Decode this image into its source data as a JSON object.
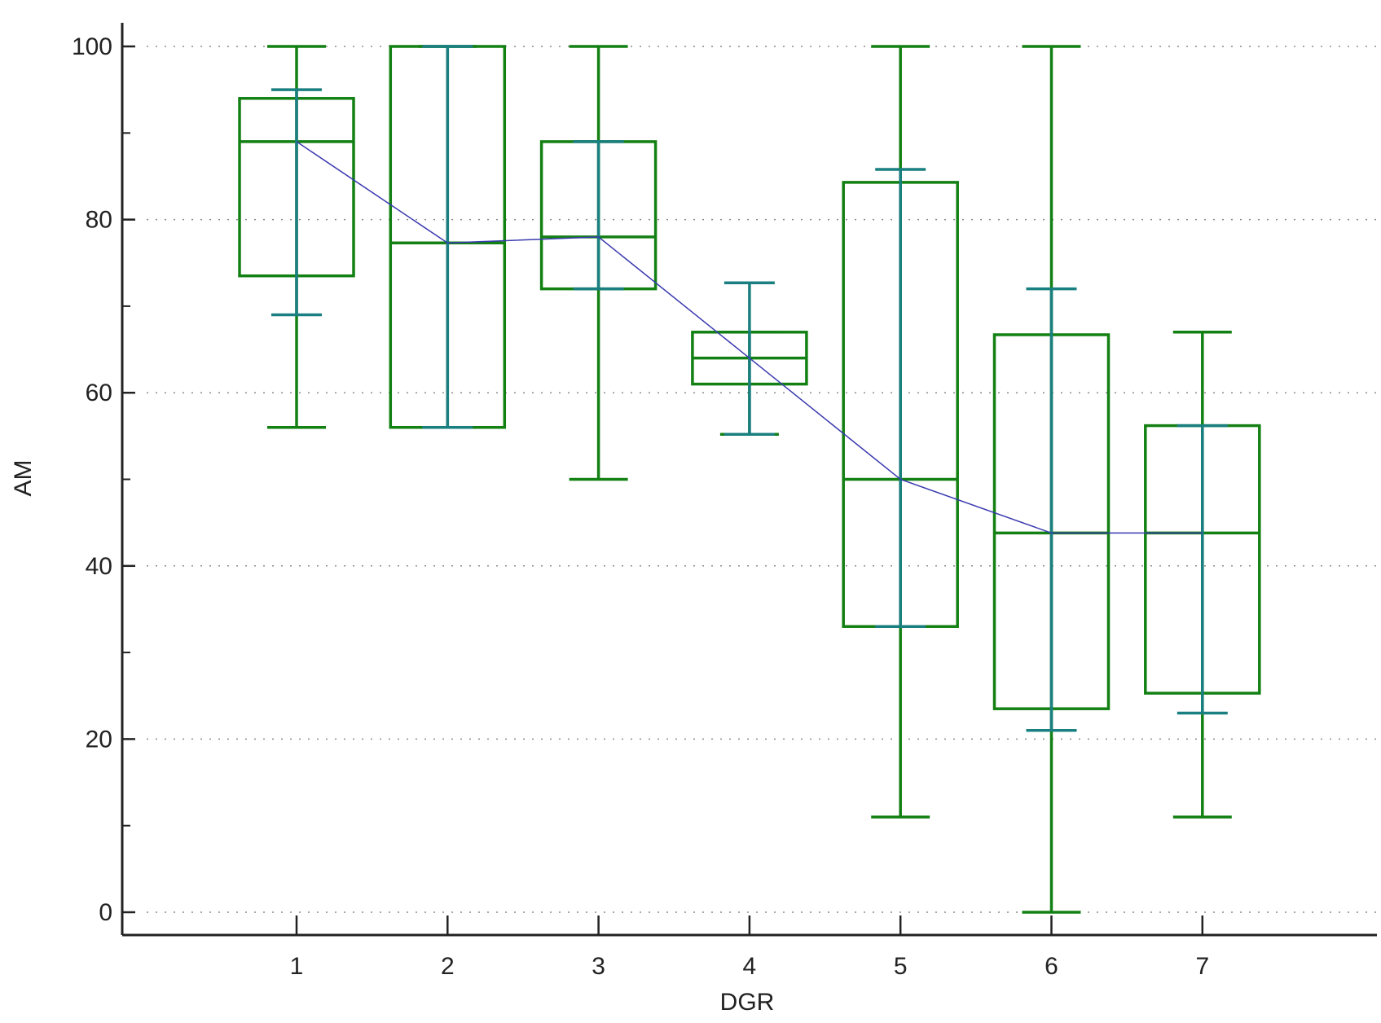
{
  "chart_data": {
    "type": "box",
    "xlabel": "DGR",
    "ylabel": "AM",
    "categories": [
      "1",
      "2",
      "3",
      "4",
      "5",
      "6",
      "7"
    ],
    "ylim": [
      -3,
      103
    ],
    "yticks": [
      0,
      20,
      40,
      60,
      80,
      100
    ],
    "ytick_labels": [
      "0",
      "20",
      "40",
      "60",
      "80",
      "100"
    ],
    "grid": "horizontal dotted",
    "boxes": [
      {
        "category": "1",
        "min": 56,
        "q1": 73.5,
        "median": 89,
        "q3": 94,
        "max": 100,
        "ci_low": 69,
        "ci_high": 95
      },
      {
        "category": "2",
        "min": 56,
        "q1": 56,
        "median": 77.3,
        "q3": 100,
        "max": 100,
        "ci_low": 56,
        "ci_high": 100
      },
      {
        "category": "3",
        "min": 50,
        "q1": 72,
        "median": 78,
        "q3": 89,
        "max": 100,
        "ci_low": 72,
        "ci_high": 89
      },
      {
        "category": "4",
        "min": 55.2,
        "q1": 61,
        "median": 64,
        "q3": 67,
        "max": 67,
        "ci_low": 55.2,
        "ci_high": 72.7
      },
      {
        "category": "5",
        "min": 11,
        "q1": 33,
        "median": 50,
        "q3": 84.3,
        "max": 100,
        "ci_low": 33,
        "ci_high": 85.8
      },
      {
        "category": "6",
        "min": 0,
        "q1": 23.5,
        "median": 43.8,
        "q3": 66.7,
        "max": 100,
        "ci_low": 21,
        "ci_high": 72
      },
      {
        "category": "7",
        "min": 11,
        "q1": 25.3,
        "median": 43.8,
        "q3": 56.2,
        "max": 67,
        "ci_low": 23,
        "ci_high": 56.2
      }
    ],
    "median_line": [
      89,
      77.3,
      78,
      64,
      50,
      43.8,
      43.8
    ],
    "colors": {
      "box": "#138013",
      "ci": "#1a7f80",
      "median_line": "#3a3ab0",
      "axis": "#222222",
      "grid": "#8a8a8a"
    }
  }
}
